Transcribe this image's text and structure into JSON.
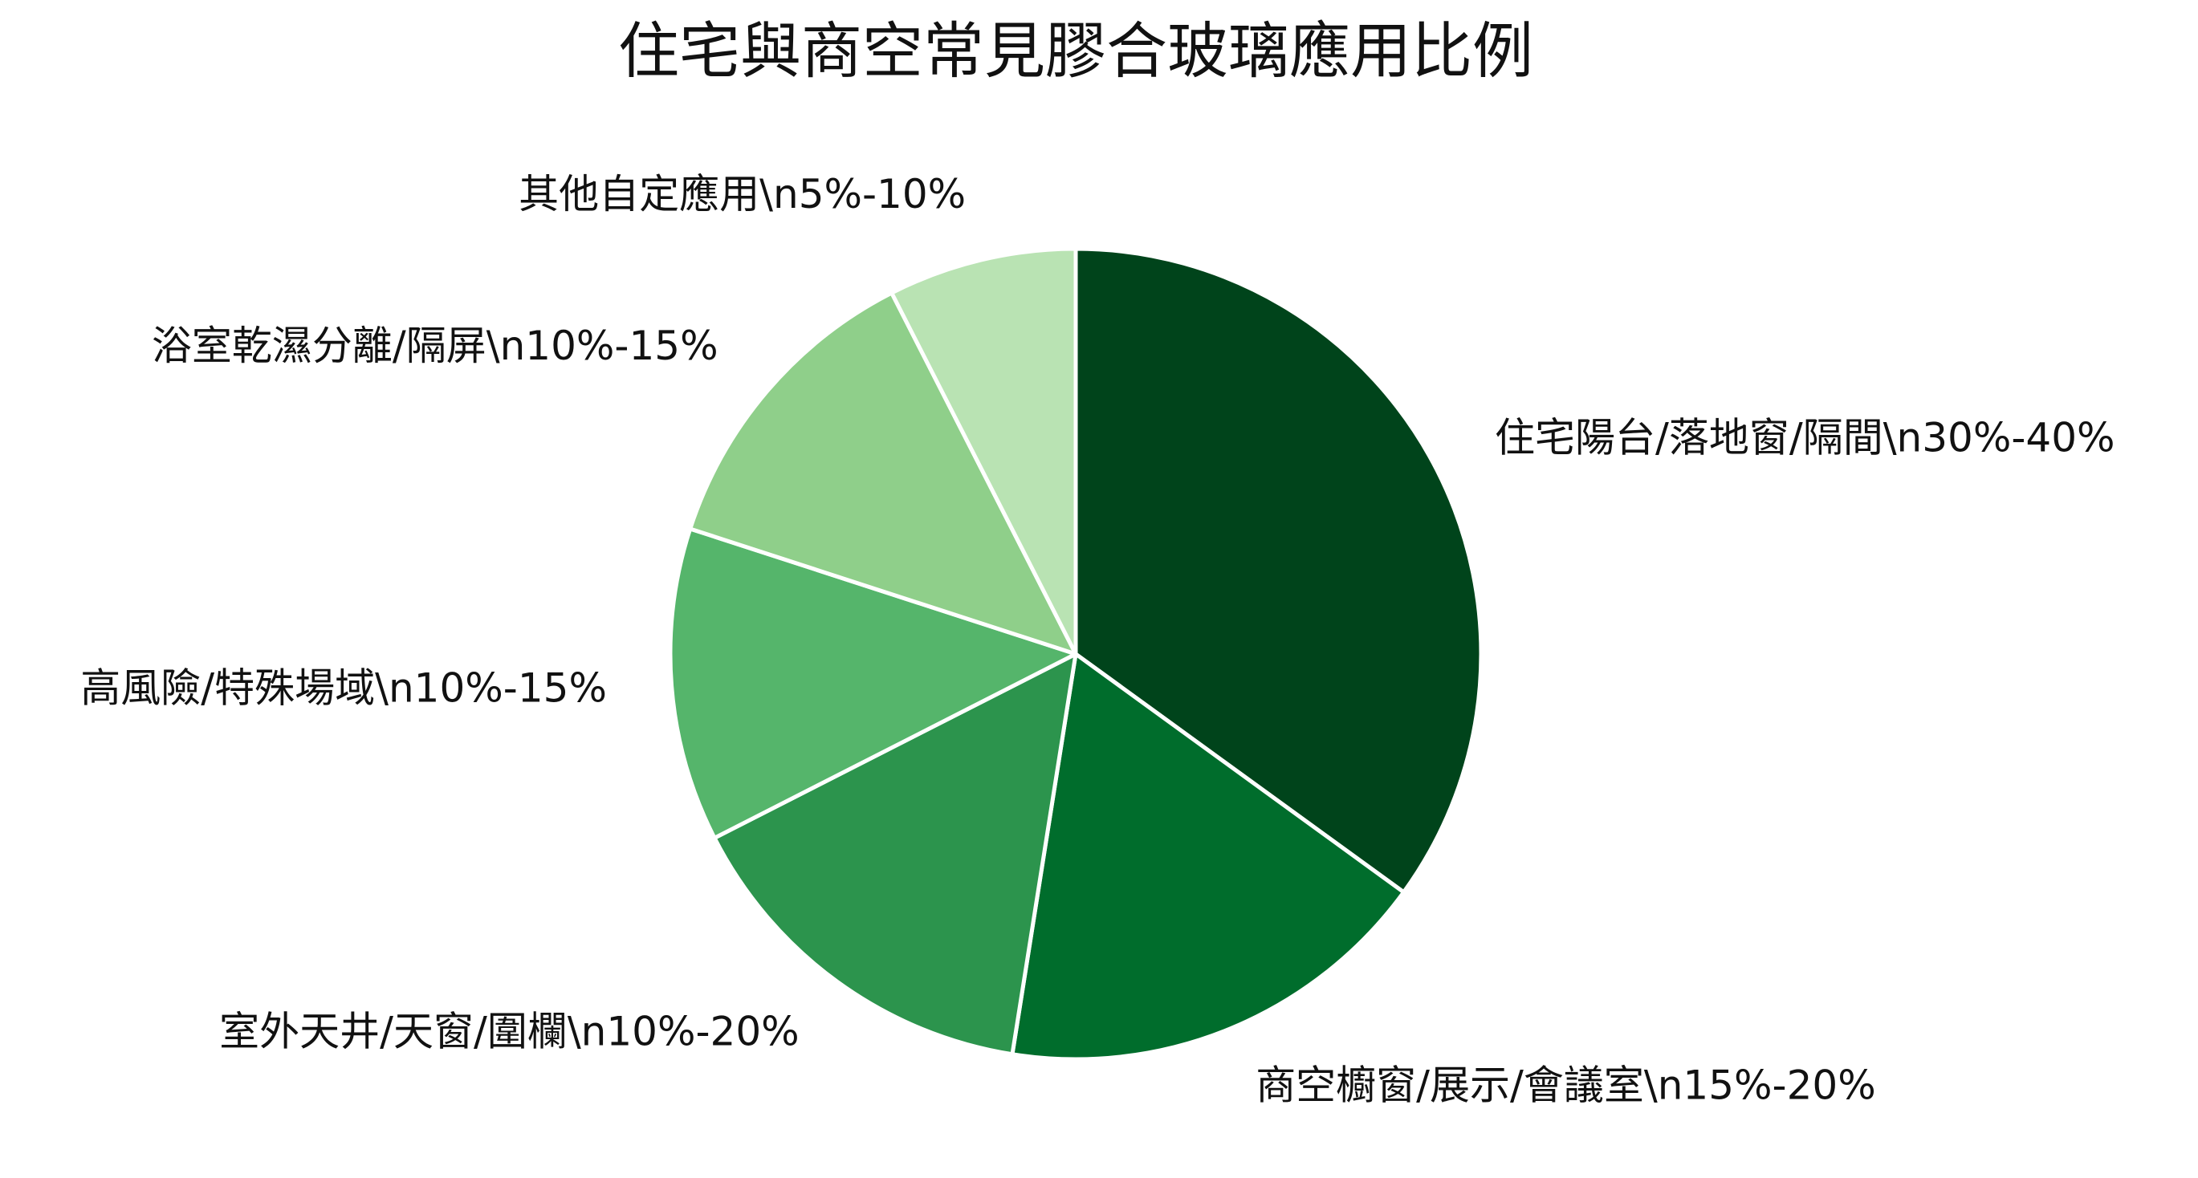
{
  "chart_data": {
    "type": "pie",
    "title": "住宅與商空常見膠合玻璃應用比例",
    "start_angle_deg": 90,
    "direction": "clockwise",
    "slices": [
      {
        "label": "住宅陽台/落地窗/隔間\\n30%-40%",
        "value": 35,
        "color": "#00441b"
      },
      {
        "label": "商空櫥窗/展示/會議室\\n15%-20%",
        "value": 17.5,
        "color": "#006d2c"
      },
      {
        "label": "室外天井/天窗/圍欄\\n10%-20%",
        "value": 15,
        "color": "#2c944d"
      },
      {
        "label": "高風險/特殊場域\\n10%-15%",
        "value": 12.5,
        "color": "#55b56b"
      },
      {
        "label": "浴室乾濕分離/隔屏\\n10%-15%",
        "value": 12.5,
        "color": "#8fcf8a"
      },
      {
        "label": "其他自定應用\\n5%-10%",
        "value": 7.5,
        "color": "#b9e3b3"
      }
    ],
    "slice_edge_color": "#ffffff"
  }
}
